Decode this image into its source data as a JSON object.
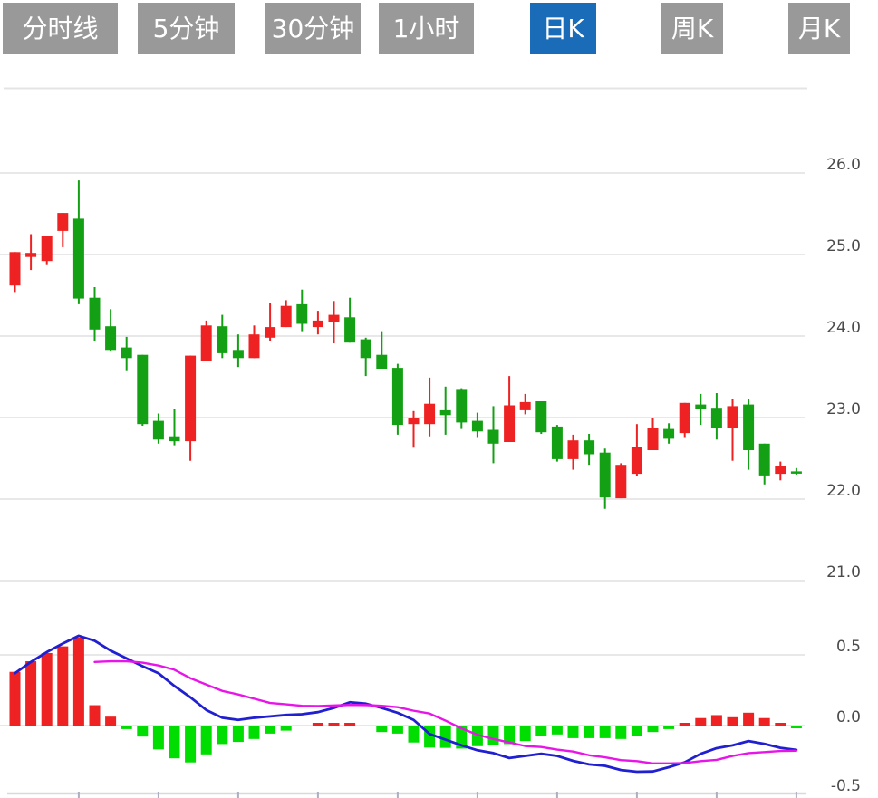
{
  "tabs": [
    {
      "label": "分时线",
      "active": false
    },
    {
      "label": "5分钟",
      "active": false
    },
    {
      "label": "30分钟",
      "active": false
    },
    {
      "label": "1小时",
      "active": false
    },
    {
      "label": "日K",
      "active": true
    },
    {
      "label": "周K",
      "active": false
    },
    {
      "label": "月K",
      "active": false
    }
  ],
  "colors": {
    "tab_bg": "#999999",
    "tab_active_bg": "#1a6bb8",
    "tab_text": "#ffffff",
    "candle_up": "#ee2222",
    "candle_down": "#14a014",
    "hist_up": "#ee2222",
    "hist_down": "#00dd00",
    "dif_line": "#2020d0",
    "dea_line": "#e815e8",
    "grid": "#e4e4e4",
    "axis_bottom": "#d9d9d9",
    "axis_tick": "#aab0c0",
    "axis_text": "#4a4a4a"
  },
  "chart_data": {
    "type": "candlestick+macd",
    "title": "",
    "legend_position": "none",
    "grid": true,
    "price_axis": {
      "side": "right",
      "ticks": [
        26.0,
        25.0,
        24.0,
        23.0,
        22.0,
        21.0
      ],
      "labels": [
        "26.0",
        "25.0",
        "24.0",
        "23.0",
        "22.0",
        "21.0"
      ],
      "ylim": [
        20.6,
        27.05
      ]
    },
    "macd_axis": {
      "side": "right",
      "ticks": [
        0.5,
        0.0,
        -0.5
      ],
      "labels": [
        "0.5",
        "0.0",
        "-0.5"
      ],
      "ylim": [
        -0.48,
        0.68
      ]
    },
    "x_axis": {
      "labels": [],
      "tick_every": 5
    },
    "candles_ohlc": [
      [
        24.62,
        25.03,
        24.54,
        25.03
      ],
      [
        24.97,
        25.25,
        24.81,
        25.02
      ],
      [
        24.92,
        25.23,
        24.87,
        25.23
      ],
      [
        25.29,
        25.51,
        25.09,
        25.51
      ],
      [
        25.44,
        25.91,
        24.39,
        24.46
      ],
      [
        24.47,
        24.6,
        23.94,
        24.08
      ],
      [
        24.12,
        24.33,
        23.81,
        23.83
      ],
      [
        23.86,
        23.99,
        23.57,
        23.73
      ],
      [
        23.77,
        23.77,
        22.9,
        22.92
      ],
      [
        22.96,
        23.05,
        22.68,
        22.73
      ],
      [
        22.77,
        23.1,
        22.66,
        22.71
      ],
      [
        22.71,
        23.76,
        22.47,
        23.76
      ],
      [
        23.7,
        24.19,
        23.7,
        24.13
      ],
      [
        24.12,
        24.26,
        23.73,
        23.79
      ],
      [
        23.83,
        24.02,
        23.62,
        23.73
      ],
      [
        23.73,
        24.13,
        23.73,
        24.02
      ],
      [
        23.98,
        24.41,
        23.94,
        24.11
      ],
      [
        24.11,
        24.44,
        24.11,
        24.37
      ],
      [
        24.39,
        24.57,
        24.06,
        24.15
      ],
      [
        24.11,
        24.31,
        24.02,
        24.19
      ],
      [
        24.17,
        24.43,
        23.91,
        24.26
      ],
      [
        24.23,
        24.47,
        23.92,
        23.92
      ],
      [
        23.96,
        23.98,
        23.51,
        23.73
      ],
      [
        23.77,
        24.06,
        23.6,
        23.6
      ],
      [
        23.61,
        23.66,
        22.79,
        22.91
      ],
      [
        22.92,
        23.08,
        22.63,
        23.0
      ],
      [
        22.92,
        23.49,
        22.77,
        23.17
      ],
      [
        23.09,
        23.38,
        22.79,
        23.03
      ],
      [
        23.34,
        23.36,
        22.86,
        22.94
      ],
      [
        22.96,
        23.06,
        22.75,
        22.83
      ],
      [
        22.85,
        23.14,
        22.44,
        22.68
      ],
      [
        22.7,
        23.51,
        22.7,
        23.15
      ],
      [
        23.09,
        23.29,
        23.04,
        23.19
      ],
      [
        23.2,
        23.2,
        22.8,
        22.82
      ],
      [
        22.89,
        22.91,
        22.46,
        22.49
      ],
      [
        22.49,
        22.79,
        22.36,
        22.72
      ],
      [
        22.72,
        22.8,
        22.42,
        22.55
      ],
      [
        22.57,
        22.62,
        21.88,
        22.02
      ],
      [
        22.01,
        22.44,
        22.01,
        22.42
      ],
      [
        22.31,
        22.92,
        22.28,
        22.64
      ],
      [
        22.6,
        22.99,
        22.6,
        22.87
      ],
      [
        22.86,
        22.93,
        22.68,
        22.74
      ],
      [
        22.81,
        23.18,
        22.75,
        23.18
      ],
      [
        23.16,
        23.29,
        22.91,
        23.1
      ],
      [
        23.12,
        23.3,
        22.73,
        22.87
      ],
      [
        22.87,
        23.23,
        22.47,
        23.14
      ],
      [
        23.16,
        23.23,
        22.36,
        22.6
      ],
      [
        22.68,
        22.68,
        22.18,
        22.29
      ],
      [
        22.31,
        22.46,
        22.23,
        22.41
      ],
      [
        22.34,
        22.38,
        22.3,
        22.33
      ]
    ],
    "macd": {
      "histogram": [
        0.38,
        0.455,
        0.513,
        0.56,
        0.622,
        0.144,
        0.063,
        -0.025,
        -0.078,
        -0.169,
        -0.232,
        -0.261,
        -0.204,
        -0.131,
        -0.116,
        -0.095,
        -0.057,
        -0.036,
        0,
        0.012,
        0.012,
        0.012,
        0,
        -0.046,
        -0.057,
        -0.12,
        -0.156,
        -0.158,
        -0.163,
        -0.146,
        -0.141,
        -0.131,
        -0.11,
        -0.074,
        -0.063,
        -0.089,
        -0.089,
        -0.089,
        -0.095,
        -0.074,
        -0.046,
        -0.025,
        0.015,
        0.053,
        0.074,
        0.059,
        0.091,
        0.053,
        0.012,
        -0.015
      ],
      "dif": [
        0.37,
        0.45,
        0.52,
        0.58,
        0.635,
        0.6,
        0.53,
        0.475,
        0.42,
        0.37,
        0.28,
        0.2,
        0.11,
        0.055,
        0.04,
        0.055,
        0.065,
        0.075,
        0.08,
        0.095,
        0.125,
        0.165,
        0.155,
        0.125,
        0.09,
        0.04,
        -0.06,
        -0.1,
        -0.14,
        -0.175,
        -0.195,
        -0.23,
        -0.215,
        -0.2,
        -0.215,
        -0.25,
        -0.275,
        -0.285,
        -0.315,
        -0.327,
        -0.325,
        -0.295,
        -0.26,
        -0.2,
        -0.16,
        -0.14,
        -0.11,
        -0.13,
        -0.158,
        -0.172
      ],
      "dea": [
        null,
        null,
        null,
        null,
        null,
        0.45,
        0.455,
        0.455,
        0.445,
        0.425,
        0.395,
        0.335,
        0.29,
        0.245,
        0.22,
        0.19,
        0.16,
        0.15,
        0.14,
        0.138,
        0.142,
        0.146,
        0.145,
        0.14,
        0.13,
        0.105,
        0.085,
        0.035,
        -0.02,
        -0.065,
        -0.095,
        -0.12,
        -0.145,
        -0.152,
        -0.17,
        -0.184,
        -0.21,
        -0.225,
        -0.245,
        -0.252,
        -0.268,
        -0.268,
        -0.266,
        -0.252,
        -0.243,
        -0.215,
        -0.195,
        -0.188,
        -0.18,
        -0.178
      ]
    }
  }
}
